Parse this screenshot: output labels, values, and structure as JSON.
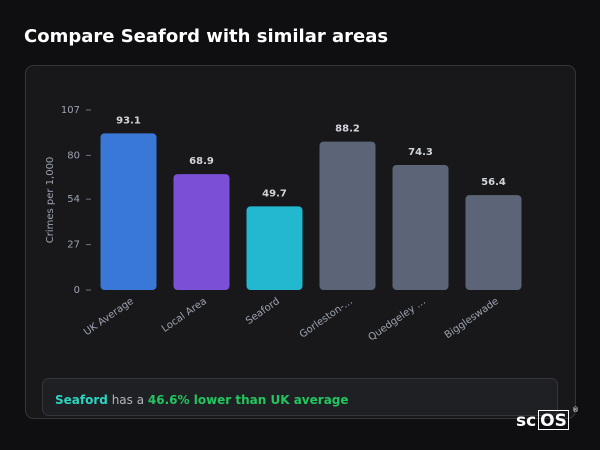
{
  "chart_data": {
    "type": "bar",
    "title": "Compare Seaford with similar areas",
    "y_label": "Crimes per 1,000",
    "categories": [
      "UK Average",
      "Local Area",
      "Seaford",
      "Gorleston-…",
      "Quedgeley …",
      "Biggleswade"
    ],
    "values": [
      93.1,
      68.9,
      49.7,
      88.2,
      74.3,
      56.4
    ],
    "colors": [
      "#3a78d8",
      "#7b4fd6",
      "#22b8cf",
      "#5c6577",
      "#5c6577",
      "#5c6577"
    ],
    "ylim": [
      0,
      107
    ],
    "yticks": [
      0,
      27,
      54,
      80,
      107
    ],
    "grid": false
  },
  "footer": {
    "place": "Seaford",
    "text": "has a",
    "highlight": "46.6% lower than UK average"
  },
  "logo": {
    "prefix": "sc",
    "boxed": "OS",
    "mark": "®"
  }
}
